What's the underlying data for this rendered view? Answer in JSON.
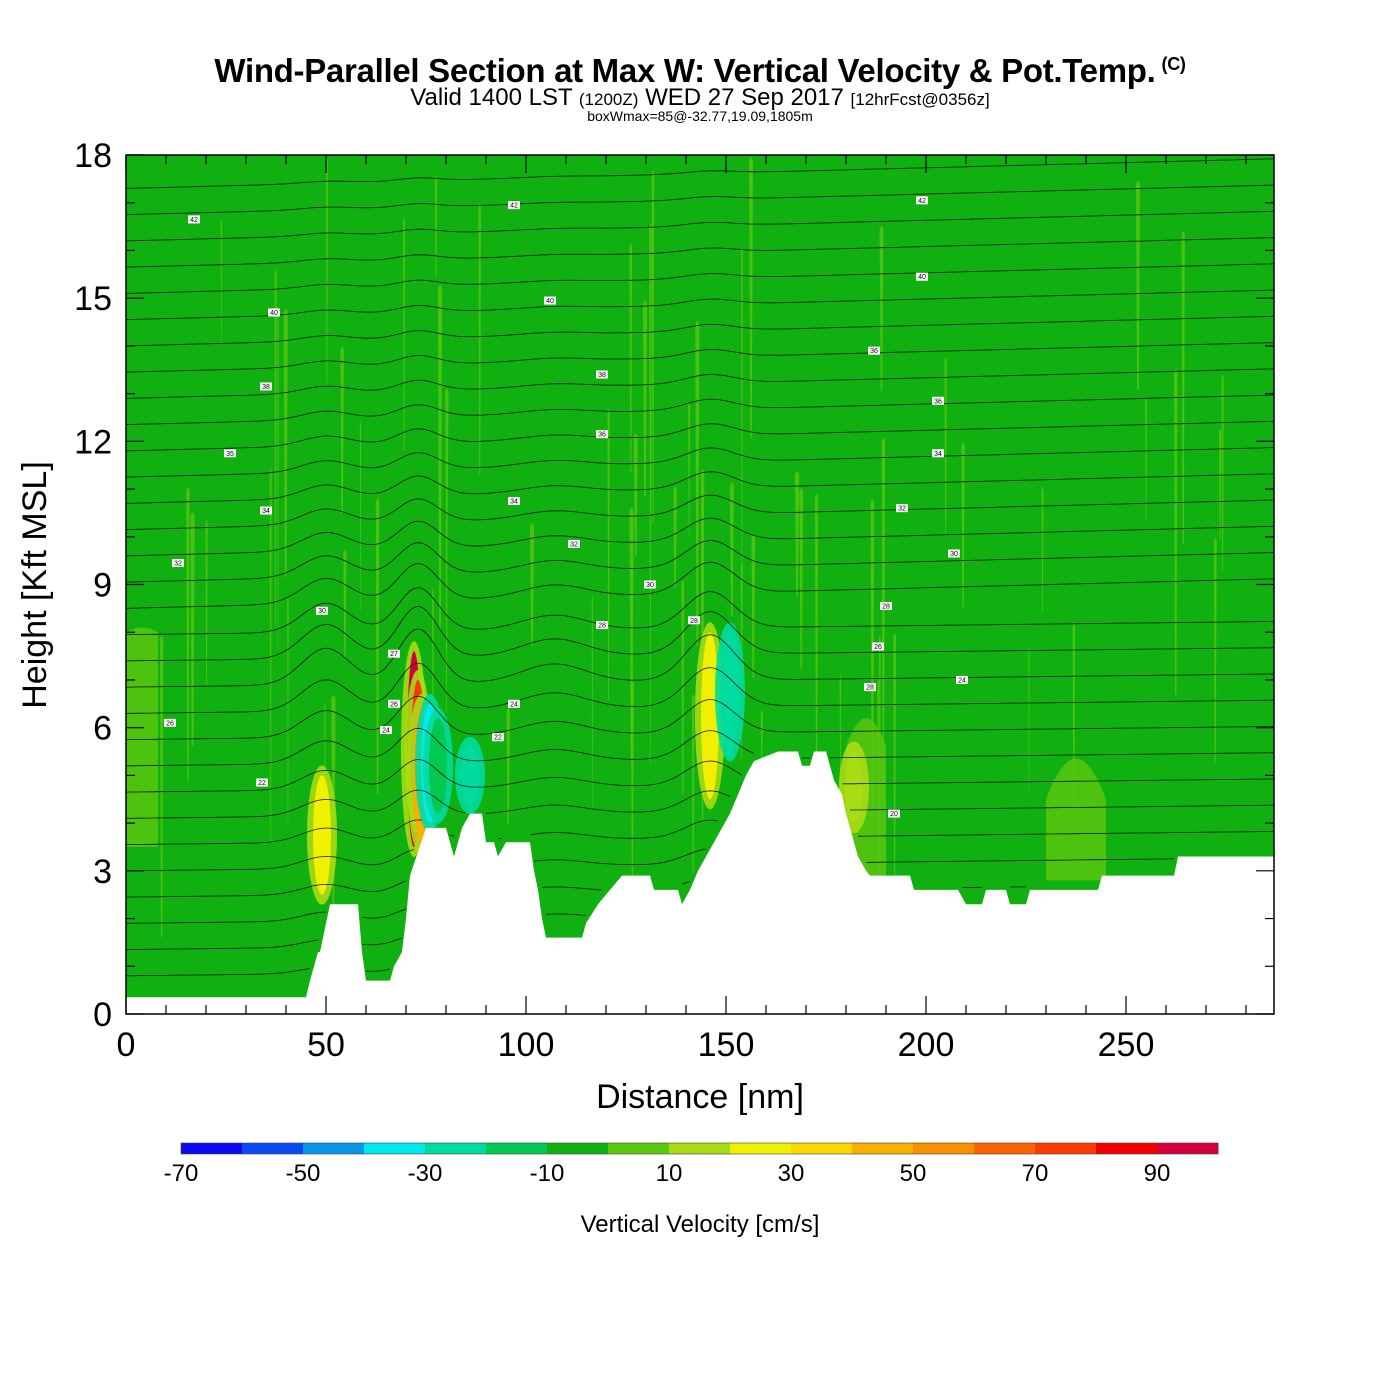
{
  "header": {
    "title": "Wind-Parallel Section at Max W: Vertical Velocity & Pot.Temp.",
    "copyright": "(C)",
    "valid_prefix": "Valid 1400 LST",
    "valid_utc": "(1200Z)",
    "valid_date": "WED 27 Sep 2017",
    "forecast": "[12hrFcst@0356z]",
    "boxwmax": "boxWmax=85@-32.77,19.09,1805m"
  },
  "chart_data": {
    "type": "heatmap",
    "title": "Wind-Parallel Section at Max W: Vertical Velocity & Pot.Temp.",
    "xlabel": "Distance [nm]",
    "ylabel": "Height [Kft MSL]",
    "xlim": [
      0,
      287
    ],
    "ylim": [
      0,
      18
    ],
    "x_ticks": [
      "0",
      "50",
      "100",
      "150",
      "200",
      "250"
    ],
    "x_tick_values": [
      0,
      50,
      100,
      150,
      200,
      250
    ],
    "y_ticks": [
      "0",
      "3",
      "6",
      "9",
      "12",
      "15",
      "18"
    ],
    "y_tick_values": [
      0,
      3,
      6,
      9,
      12,
      15,
      18
    ],
    "terrain_kft": [
      [
        0,
        0.35
      ],
      [
        45,
        0.35
      ],
      [
        46,
        0.7
      ],
      [
        48,
        1.3
      ],
      [
        48.5,
        1.3
      ],
      [
        51,
        2.3
      ],
      [
        58,
        2.3
      ],
      [
        59,
        1.3
      ],
      [
        60,
        0.7
      ],
      [
        66,
        0.7
      ],
      [
        67,
        1.0
      ],
      [
        69,
        1.3
      ],
      [
        70,
        2.0
      ],
      [
        71,
        2.9
      ],
      [
        75,
        3.9
      ],
      [
        80,
        3.9
      ],
      [
        81,
        3.6
      ],
      [
        82,
        3.3
      ],
      [
        83,
        3.6
      ],
      [
        84,
        3.9
      ],
      [
        86,
        4.2
      ],
      [
        89,
        4.2
      ],
      [
        90,
        3.6
      ],
      [
        92,
        3.6
      ],
      [
        93,
        3.3
      ],
      [
        95,
        3.6
      ],
      [
        101,
        3.6
      ],
      [
        102,
        3.0
      ],
      [
        103,
        2.6
      ],
      [
        104,
        2.0
      ],
      [
        105,
        1.6
      ],
      [
        114,
        1.6
      ],
      [
        115,
        1.9
      ],
      [
        118,
        2.3
      ],
      [
        121,
        2.6
      ],
      [
        124,
        2.9
      ],
      [
        131,
        2.9
      ],
      [
        132,
        2.6
      ],
      [
        138,
        2.6
      ],
      [
        139,
        2.3
      ],
      [
        141,
        2.6
      ],
      [
        143,
        3.0
      ],
      [
        145,
        3.3
      ],
      [
        147,
        3.6
      ],
      [
        149,
        3.9
      ],
      [
        151,
        4.2
      ],
      [
        153,
        4.6
      ],
      [
        155,
        5.0
      ],
      [
        157,
        5.3
      ],
      [
        163,
        5.5
      ],
      [
        168,
        5.5
      ],
      [
        169,
        5.2
      ],
      [
        171,
        5.2
      ],
      [
        172,
        5.5
      ],
      [
        175,
        5.5
      ],
      [
        176,
        5.2
      ],
      [
        177,
        4.9
      ],
      [
        179,
        4.6
      ],
      [
        180,
        4.2
      ],
      [
        181,
        3.9
      ],
      [
        182,
        3.6
      ],
      [
        183,
        3.3
      ],
      [
        185,
        3.0
      ],
      [
        186,
        2.9
      ],
      [
        196,
        2.9
      ],
      [
        197,
        2.6
      ],
      [
        208,
        2.6
      ],
      [
        210,
        2.3
      ],
      [
        214,
        2.3
      ],
      [
        215,
        2.6
      ],
      [
        220,
        2.6
      ],
      [
        221,
        2.3
      ],
      [
        225,
        2.3
      ],
      [
        226,
        2.6
      ],
      [
        243,
        2.6
      ],
      [
        244,
        2.9
      ],
      [
        262,
        2.9
      ],
      [
        263,
        3.3
      ],
      [
        287,
        3.3
      ]
    ],
    "isentrope_labels": [
      {
        "text": "42",
        "x": 17,
        "y": 16.65
      },
      {
        "text": "42",
        "x": 97,
        "y": 16.95
      },
      {
        "text": "42",
        "x": 199,
        "y": 17.05
      },
      {
        "text": "40",
        "x": 37,
        "y": 14.7
      },
      {
        "text": "40",
        "x": 106,
        "y": 14.95
      },
      {
        "text": "40",
        "x": 199,
        "y": 15.45
      },
      {
        "text": "38",
        "x": 35,
        "y": 13.15
      },
      {
        "text": "38",
        "x": 119,
        "y": 13.4
      },
      {
        "text": "36",
        "x": 187,
        "y": 13.9
      },
      {
        "text": "36",
        "x": 119,
        "y": 12.15
      },
      {
        "text": "35",
        "x": 26,
        "y": 11.75
      },
      {
        "text": "36",
        "x": 203,
        "y": 12.85
      },
      {
        "text": "34",
        "x": 35,
        "y": 10.55
      },
      {
        "text": "34",
        "x": 97,
        "y": 10.75
      },
      {
        "text": "34",
        "x": 203,
        "y": 11.75
      },
      {
        "text": "32",
        "x": 13,
        "y": 9.45
      },
      {
        "text": "32",
        "x": 112,
        "y": 9.85
      },
      {
        "text": "32",
        "x": 194,
        "y": 10.6
      },
      {
        "text": "30",
        "x": 49,
        "y": 8.45
      },
      {
        "text": "30",
        "x": 131,
        "y": 9.0
      },
      {
        "text": "30",
        "x": 207,
        "y": 9.65
      },
      {
        "text": "28",
        "x": 119,
        "y": 8.15
      },
      {
        "text": "28",
        "x": 142,
        "y": 8.25
      },
      {
        "text": "28",
        "x": 190,
        "y": 8.55
      },
      {
        "text": "27",
        "x": 67,
        "y": 7.55
      },
      {
        "text": "26",
        "x": 188,
        "y": 7.7
      },
      {
        "text": "26",
        "x": 67,
        "y": 6.5
      },
      {
        "text": "24",
        "x": 97,
        "y": 6.5
      },
      {
        "text": "24",
        "x": 65,
        "y": 5.95
      },
      {
        "text": "24",
        "x": 209,
        "y": 7.0
      },
      {
        "text": "22",
        "x": 93,
        "y": 5.8
      },
      {
        "text": "26",
        "x": 11,
        "y": 6.1
      },
      {
        "text": "28",
        "x": 186,
        "y": 6.85
      },
      {
        "text": "22",
        "x": 34,
        "y": 4.85
      },
      {
        "text": "20",
        "x": 192,
        "y": 4.2
      }
    ],
    "vertical_velocity_cells": [
      {
        "x": 72,
        "y0": 3.5,
        "y1": 7.6,
        "value": 90
      },
      {
        "x": 73,
        "y0": 4.0,
        "y1": 7.0,
        "value": 70
      },
      {
        "x": 74,
        "y0": 3.5,
        "y1": 6.5,
        "value": 40
      },
      {
        "x": 76,
        "y0": 4.0,
        "y1": 6.5,
        "value": -40
      },
      {
        "x": 78,
        "y0": 4.2,
        "y1": 6.2,
        "value": -20
      },
      {
        "x": 86,
        "y0": 4.4,
        "y1": 5.6,
        "value": -30
      },
      {
        "x": 49,
        "y0": 2.5,
        "y1": 5.0,
        "value": 25
      },
      {
        "x": 146,
        "y0": 4.5,
        "y1": 8.0,
        "value": 25
      },
      {
        "x": 151,
        "y0": 5.5,
        "y1": 8.0,
        "value": -25
      },
      {
        "x": 182,
        "y0": 4.0,
        "y1": 5.5,
        "value": 15
      }
    ],
    "colorbar": {
      "label": "Vertical Velocity [cm/s]",
      "tick_labels": [
        "-70",
        "-50",
        "-30",
        "-10",
        "10",
        "30",
        "50",
        "70",
        "90"
      ],
      "bounds": [
        -70,
        -60,
        -50,
        -40,
        -30,
        -20,
        -10,
        0,
        10,
        20,
        30,
        40,
        50,
        60,
        70,
        80,
        90,
        100
      ],
      "colors": [
        "#0a0aee",
        "#0a4af0",
        "#0a96e8",
        "#00e8f0",
        "#00dca0",
        "#00c850",
        "#10b010",
        "#5cc810",
        "#a8dc14",
        "#f0f000",
        "#f8d800",
        "#f8b000",
        "#f89000",
        "#f86400",
        "#f83c00",
        "#f00000",
        "#d0003c"
      ]
    }
  }
}
